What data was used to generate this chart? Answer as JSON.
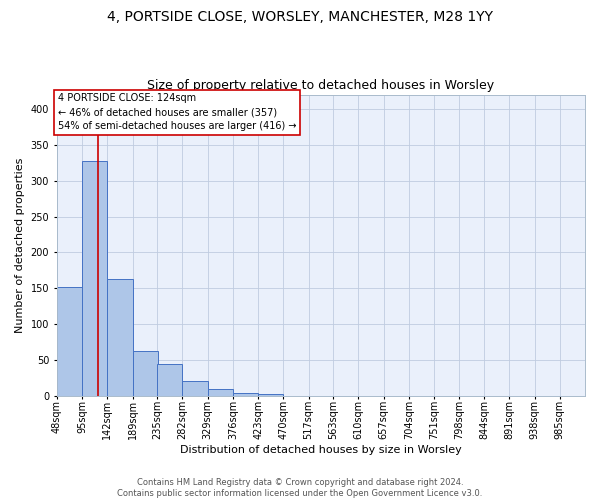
{
  "title": "4, PORTSIDE CLOSE, WORSLEY, MANCHESTER, M28 1YY",
  "subtitle": "Size of property relative to detached houses in Worsley",
  "xlabel": "Distribution of detached houses by size in Worsley",
  "ylabel": "Number of detached properties",
  "bin_labels": [
    "48sqm",
    "95sqm",
    "142sqm",
    "189sqm",
    "235sqm",
    "282sqm",
    "329sqm",
    "376sqm",
    "423sqm",
    "470sqm",
    "517sqm",
    "563sqm",
    "610sqm",
    "657sqm",
    "704sqm",
    "751sqm",
    "798sqm",
    "844sqm",
    "891sqm",
    "938sqm",
    "985sqm"
  ],
  "bin_edges": [
    48,
    95,
    142,
    189,
    235,
    282,
    329,
    376,
    423,
    470,
    517,
    563,
    610,
    657,
    704,
    751,
    798,
    844,
    891,
    938,
    985
  ],
  "bar_heights": [
    152,
    328,
    163,
    63,
    44,
    21,
    9,
    4,
    2,
    0,
    0,
    0,
    0,
    0,
    0,
    0,
    0,
    0,
    0,
    0
  ],
  "bar_color": "#aec6e8",
  "bar_edge_color": "#4472c4",
  "property_size": 124,
  "annotation_text": "4 PORTSIDE CLOSE: 124sqm\n← 46% of detached houses are smaller (357)\n54% of semi-detached houses are larger (416) →",
  "annotation_box_color": "#ffffff",
  "annotation_box_edge_color": "#cc0000",
  "ylim": [
    0,
    420
  ],
  "yticks": [
    0,
    50,
    100,
    150,
    200,
    250,
    300,
    350,
    400
  ],
  "background_color": "#eaf0fb",
  "footer_text": "Contains HM Land Registry data © Crown copyright and database right 2024.\nContains public sector information licensed under the Open Government Licence v3.0.",
  "title_fontsize": 10,
  "subtitle_fontsize": 9,
  "ylabel_fontsize": 8,
  "xlabel_fontsize": 8,
  "tick_fontsize": 7,
  "footer_fontsize": 6,
  "annotation_fontsize": 7
}
